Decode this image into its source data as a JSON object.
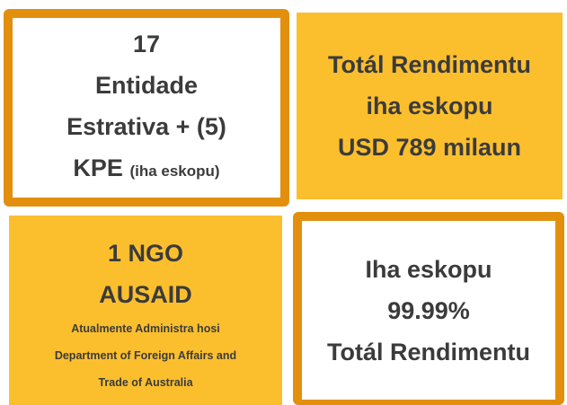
{
  "boxes": [
    {
      "lines": [
        "17",
        "Entidade",
        "Estrativa + (5)",
        "KPE"
      ],
      "note": "(iha eskopu)"
    },
    {
      "lines": [
        "Totál Rendimentu",
        "iha eskopu",
        "USD 789 milaun"
      ]
    },
    {
      "lines": [
        "1 NGO",
        "AUSAID"
      ],
      "small_lines": [
        "Atualmente Administra hosi",
        "Department of Foreign Affairs and",
        "Trade of Australia"
      ]
    },
    {
      "lines": [
        "Iha eskopu",
        "99.99%",
        "Totál Rendimentu"
      ]
    }
  ]
}
